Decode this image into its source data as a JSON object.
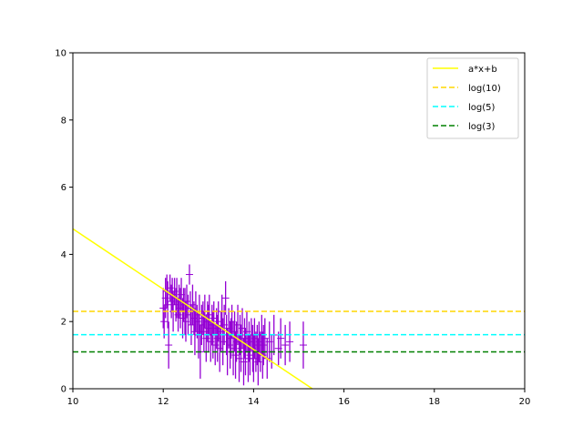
{
  "chart_data": {
    "type": "scatter",
    "title": "",
    "xlabel": "",
    "ylabel": "",
    "xlim": [
      10,
      20
    ],
    "ylim": [
      0,
      10
    ],
    "xticks": [
      "10",
      "12",
      "14",
      "16",
      "18",
      "20"
    ],
    "yticks": [
      "0",
      "2",
      "4",
      "6",
      "8",
      "10"
    ],
    "grid": false,
    "legend_position": "top-right",
    "series": [
      {
        "name": "a*x+b",
        "kind": "line",
        "color": "#ffff00",
        "style": "solid",
        "x": [
          10,
          15.3
        ],
        "y": [
          4.76,
          0
        ]
      },
      {
        "name": "log(10)",
        "kind": "hline",
        "color": "#ffd700",
        "style": "dashed",
        "y": 2.3026
      },
      {
        "name": "log(5)",
        "kind": "hline",
        "color": "#00ffff",
        "style": "dashed",
        "y": 1.6094
      },
      {
        "name": "log(3)",
        "kind": "hline",
        "color": "#008000",
        "style": "dashed",
        "y": 1.0986
      }
    ],
    "errorbar_series": {
      "color": "#9400d3",
      "marker": "+",
      "points": [
        [
          12.0,
          2.4,
          0.6
        ],
        [
          12.02,
          2.0,
          0.5
        ],
        [
          12.05,
          2.7,
          0.6
        ],
        [
          12.08,
          2.9,
          0.5
        ],
        [
          12.1,
          2.5,
          0.7
        ],
        [
          12.12,
          1.3,
          0.7
        ],
        [
          12.15,
          3.0,
          0.4
        ],
        [
          12.18,
          2.6,
          0.5
        ],
        [
          12.2,
          2.8,
          0.5
        ],
        [
          12.22,
          2.3,
          0.6
        ],
        [
          12.25,
          2.9,
          0.4
        ],
        [
          12.28,
          2.5,
          0.5
        ],
        [
          12.3,
          2.7,
          0.6
        ],
        [
          12.33,
          2.2,
          0.5
        ],
        [
          12.35,
          2.6,
          0.5
        ],
        [
          12.38,
          2.4,
          0.6
        ],
        [
          12.4,
          2.8,
          0.5
        ],
        [
          12.43,
          2.1,
          0.6
        ],
        [
          12.45,
          2.5,
          0.5
        ],
        [
          12.48,
          2.3,
          0.7
        ],
        [
          12.5,
          2.0,
          0.6
        ],
        [
          12.52,
          2.6,
          0.5
        ],
        [
          12.55,
          2.2,
          0.6
        ],
        [
          12.58,
          3.4,
          0.3
        ],
        [
          12.6,
          2.4,
          0.5
        ],
        [
          12.62,
          1.9,
          0.6
        ],
        [
          12.65,
          2.5,
          0.6
        ],
        [
          12.68,
          2.1,
          0.5
        ],
        [
          12.7,
          1.7,
          0.7
        ],
        [
          12.72,
          2.3,
          0.6
        ],
        [
          12.75,
          2.0,
          0.5
        ],
        [
          12.78,
          1.6,
          0.7
        ],
        [
          12.8,
          2.2,
          0.6
        ],
        [
          12.82,
          1.1,
          0.8
        ],
        [
          12.85,
          1.9,
          0.6
        ],
        [
          12.88,
          2.1,
          0.5
        ],
        [
          12.9,
          1.7,
          0.6
        ],
        [
          12.92,
          2.3,
          0.5
        ],
        [
          12.95,
          1.5,
          0.7
        ],
        [
          12.98,
          2.0,
          0.6
        ],
        [
          13.0,
          1.8,
          0.7
        ],
        [
          13.02,
          2.2,
          0.6
        ],
        [
          13.05,
          1.4,
          0.6
        ],
        [
          13.08,
          1.9,
          0.6
        ],
        [
          13.1,
          1.6,
          0.7
        ],
        [
          13.12,
          2.1,
          0.5
        ],
        [
          13.15,
          1.3,
          0.6
        ],
        [
          13.18,
          1.8,
          0.6
        ],
        [
          13.2,
          1.5,
          0.7
        ],
        [
          13.22,
          2.0,
          0.6
        ],
        [
          13.25,
          1.2,
          0.7
        ],
        [
          13.28,
          1.7,
          0.6
        ],
        [
          13.3,
          2.3,
          0.5
        ],
        [
          13.32,
          1.4,
          0.7
        ],
        [
          13.35,
          1.9,
          0.6
        ],
        [
          13.38,
          2.7,
          0.5
        ],
        [
          13.4,
          1.6,
          0.6
        ],
        [
          13.42,
          1.1,
          0.7
        ],
        [
          13.45,
          1.8,
          0.6
        ],
        [
          13.48,
          1.3,
          0.7
        ],
        [
          13.5,
          1.5,
          0.6
        ],
        [
          13.52,
          2.0,
          0.5
        ],
        [
          13.55,
          1.2,
          0.8
        ],
        [
          13.58,
          1.7,
          0.6
        ],
        [
          13.6,
          1.0,
          0.7
        ],
        [
          13.62,
          1.4,
          0.6
        ],
        [
          13.65,
          1.9,
          0.6
        ],
        [
          13.68,
          0.9,
          0.7
        ],
        [
          13.7,
          1.6,
          0.6
        ],
        [
          13.72,
          1.2,
          0.7
        ],
        [
          13.75,
          1.8,
          0.6
        ],
        [
          13.78,
          0.8,
          0.7
        ],
        [
          13.8,
          1.5,
          0.6
        ],
        [
          13.82,
          1.1,
          0.7
        ],
        [
          13.85,
          1.7,
          0.6
        ],
        [
          13.88,
          0.9,
          0.7
        ],
        [
          13.9,
          1.4,
          0.6
        ],
        [
          13.92,
          1.0,
          0.6
        ],
        [
          13.95,
          1.6,
          0.5
        ],
        [
          13.98,
          1.2,
          0.7
        ],
        [
          14.0,
          0.9,
          0.7
        ],
        [
          14.02,
          1.5,
          0.6
        ],
        [
          14.05,
          1.1,
          0.6
        ],
        [
          14.08,
          1.3,
          0.6
        ],
        [
          14.1,
          0.8,
          0.7
        ],
        [
          14.12,
          1.4,
          0.6
        ],
        [
          14.15,
          1.1,
          0.6
        ],
        [
          14.18,
          1.6,
          0.6
        ],
        [
          14.2,
          1.0,
          0.7
        ],
        [
          14.22,
          1.3,
          0.6
        ],
        [
          14.25,
          1.5,
          0.6
        ],
        [
          14.3,
          0.9,
          0.6
        ],
        [
          14.35,
          1.4,
          0.6
        ],
        [
          14.4,
          1.1,
          0.5
        ],
        [
          14.45,
          1.6,
          0.6
        ],
        [
          14.55,
          1.2,
          0.5
        ],
        [
          14.6,
          1.5,
          0.6
        ],
        [
          14.7,
          1.3,
          0.6
        ],
        [
          14.8,
          1.4,
          0.6
        ],
        [
          15.1,
          1.3,
          0.7
        ]
      ]
    }
  }
}
